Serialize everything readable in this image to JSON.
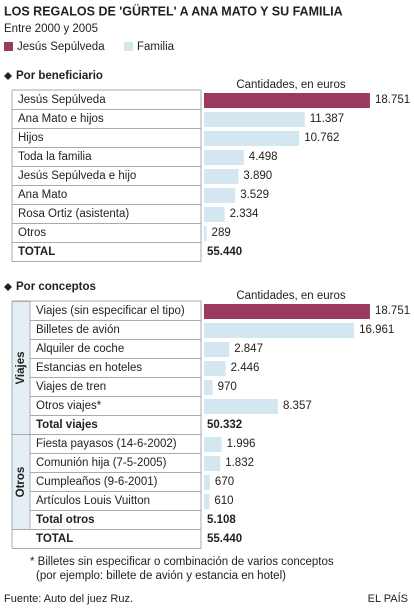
{
  "title": "LOS REGALOS DE 'GÜRTEL' A ANA MATO Y SU FAMILIA",
  "subtitle": "Entre 2000 y 2005",
  "legend": [
    {
      "name": "Jesús Sepúlveda",
      "color": "#9b3a61"
    },
    {
      "name": "Familia",
      "color": "#d4e7f1"
    }
  ],
  "chart_data": [
    {
      "type": "bar",
      "title": "Por beneficiario",
      "value_axis_label": "Cantidades, en euros",
      "xlim": [
        0,
        20000
      ],
      "groups": [
        {
          "categories": [
            "Jesús Sepúlveda",
            "Ana Mato e hijos",
            "Hijos",
            "Toda la familia",
            "Jesús Sepúlveda e hijo",
            "Ana Mato",
            "Rosa Ortiz (asistenta)",
            "Otros"
          ],
          "values": [
            18751,
            11387,
            10762,
            4498,
            3890,
            3529,
            2334,
            289
          ],
          "value_labels": [
            "18.751",
            "11.387",
            "10.762",
            "4.498",
            "3.890",
            "3.529",
            "2.334",
            "289"
          ],
          "colors": [
            "#9b3a61",
            "#d4e7f1",
            "#d4e7f1",
            "#d4e7f1",
            "#d4e7f1",
            "#d4e7f1",
            "#d4e7f1",
            "#d4e7f1"
          ]
        }
      ],
      "total": [
        "TOTAL",
        "55.440"
      ]
    },
    {
      "type": "bar",
      "title": "Por conceptos",
      "value_axis_label": "Cantidades, en euros",
      "xlim": [
        0,
        20000
      ],
      "groups": [
        {
          "name": "Viajes",
          "categories": [
            "Viajes (sin especificar el tipo)",
            "Billetes de avión",
            "Alquiler de coche",
            "Estancias en hoteles",
            "Viajes de tren",
            "Otros viajes*"
          ],
          "values": [
            18751,
            16961,
            2847,
            2446,
            970,
            8357
          ],
          "value_labels": [
            "18.751",
            "16.961",
            "2.847",
            "2.446",
            "970",
            "8.357"
          ],
          "colors": [
            "#9b3a61",
            "#d4e7f1",
            "#d4e7f1",
            "#d4e7f1",
            "#d4e7f1",
            "#d4e7f1"
          ],
          "total": [
            "Total viajes",
            "50.332"
          ]
        },
        {
          "name": "Otros",
          "categories": [
            "Fiesta payasos (14-6-2002)",
            "Comunión hija (7-5-2005)",
            "Cumpleaños (9-6-2001)",
            "Artículos Louis Vuitton"
          ],
          "values": [
            1996,
            1832,
            670,
            610
          ],
          "value_labels": [
            "1.996",
            "1.832",
            "670",
            "610"
          ],
          "colors": [
            "#d4e7f1",
            "#d4e7f1",
            "#d4e7f1",
            "#d4e7f1"
          ],
          "total": [
            "Total otros",
            "5.108"
          ]
        }
      ],
      "total": [
        "TOTAL",
        "55.440"
      ]
    }
  ],
  "footnote": [
    "* Billetes sin especificar o combinación de varios conceptos",
    "(por ejemplo: billete de avión y estancia en hotel)"
  ],
  "source": "Fuente: Auto del juez Ruz.",
  "brand": "EL PAÍS"
}
